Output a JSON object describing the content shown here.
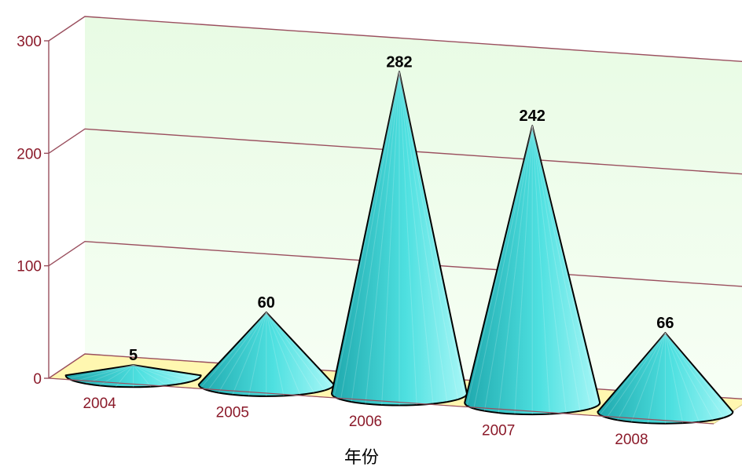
{
  "chart_data": {
    "type": "bar",
    "style": "3d-cone",
    "categories": [
      "2004",
      "2005",
      "2006",
      "2007",
      "2008"
    ],
    "values": [
      5,
      60,
      282,
      242,
      66
    ],
    "title": "",
    "xlabel": "年份",
    "ylabel": "",
    "ylim": [
      0,
      300
    ],
    "yticks": [
      0,
      100,
      200,
      300
    ],
    "grid": true,
    "data_labels": true,
    "colors": {
      "cone": "#4ee0e0",
      "cone_dark": "#1fa8ad",
      "cone_light": "#a9f7f7",
      "floor": "#fff7b0",
      "wall_top": "#e8fbe4",
      "wall_bottom": "#f7fff5",
      "gridline": "#9a4f5e",
      "axis_text": "#8b1a2a",
      "label_text": "#000000"
    }
  }
}
